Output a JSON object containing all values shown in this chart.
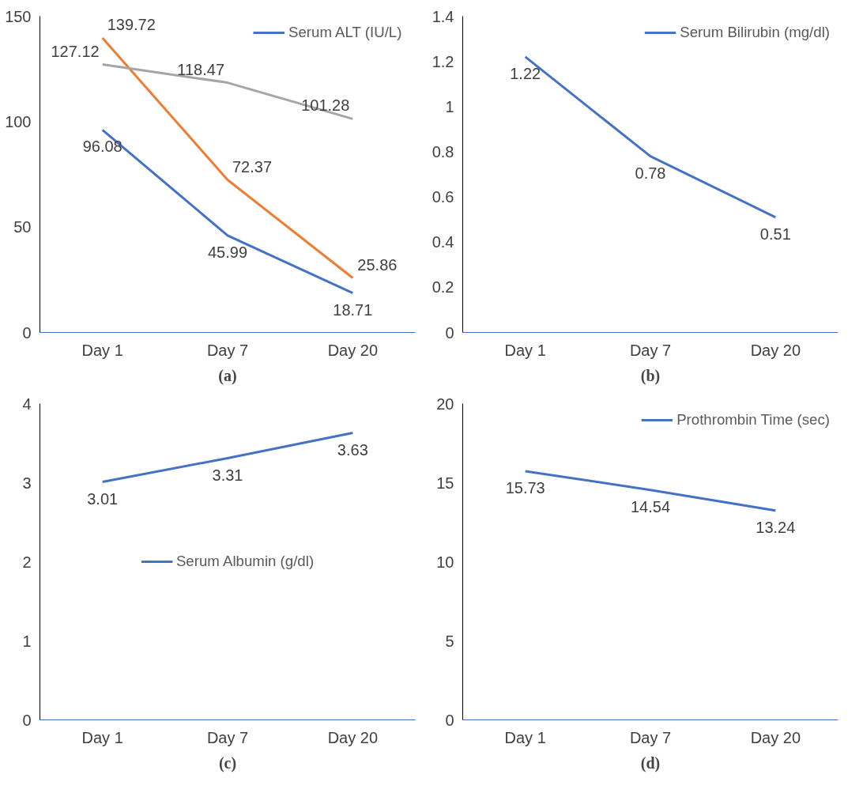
{
  "chart_data": [
    {
      "type": "line",
      "categories": [
        "Day 1",
        "Day 7",
        "Day 20"
      ],
      "ylim": [
        0,
        150
      ],
      "yticks": [
        0,
        50,
        100,
        150
      ],
      "grid": false,
      "legend": "top right",
      "data_labels": true,
      "annotations": [
        "(a)"
      ],
      "series": [
        {
          "name": "Serum ALT (IU/L)",
          "color": "#4472c4",
          "values": [
            96.08,
            45.99,
            18.71
          ]
        },
        {
          "color": "#ed7d31",
          "values": [
            139.72,
            72.37,
            25.86
          ]
        },
        {
          "color": "#a5a5a5",
          "values": [
            127.12,
            118.47,
            101.28
          ]
        }
      ]
    },
    {
      "type": "line",
      "categories": [
        "Day 1",
        "Day 7",
        "Day 20"
      ],
      "ylim": [
        0,
        1.4
      ],
      "yticks": [
        0,
        0.2,
        0.4,
        0.6,
        0.8,
        1,
        1.2,
        1.4
      ],
      "grid": false,
      "legend": "top right",
      "data_labels": true,
      "annotations": [
        "(b)"
      ],
      "series": [
        {
          "name": "Serum Bilirubin (mg/dl)",
          "color": "#4472c4",
          "values": [
            1.22,
            0.78,
            0.51
          ]
        }
      ]
    },
    {
      "type": "line",
      "categories": [
        "Day 1",
        "Day 7",
        "Day 20"
      ],
      "ylim": [
        0,
        4
      ],
      "yticks": [
        0,
        1,
        2,
        3,
        4
      ],
      "grid": false,
      "legend": "center",
      "data_labels": true,
      "annotations": [
        "(c)"
      ],
      "series": [
        {
          "name": "Serum Albumin (g/dl)",
          "color": "#4472c4",
          "values": [
            3.01,
            3.31,
            3.63
          ]
        }
      ]
    },
    {
      "type": "line",
      "categories": [
        "Day 1",
        "Day 7",
        "Day 20"
      ],
      "ylim": [
        0,
        20
      ],
      "yticks": [
        0,
        5,
        10,
        15,
        20
      ],
      "grid": false,
      "legend": "top right",
      "data_labels": true,
      "annotations": [
        "(d)"
      ],
      "series": [
        {
          "name": "Prothrombin Time (sec)",
          "color": "#4472c4",
          "values": [
            15.73,
            14.54,
            13.24
          ]
        }
      ]
    }
  ]
}
